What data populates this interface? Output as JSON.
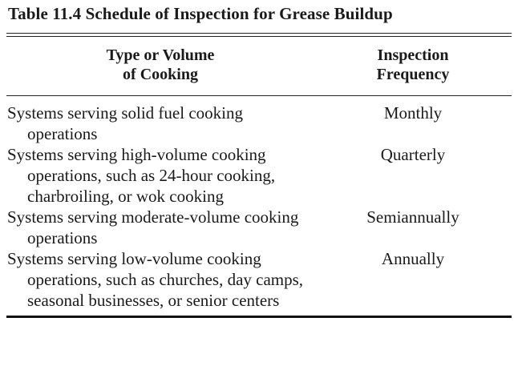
{
  "table": {
    "title": "Table 11.4  Schedule of Inspection for Grease Buildup",
    "headers": {
      "type_line1": "Type or Volume",
      "type_line2": "of Cooking",
      "freq_line1": "Inspection",
      "freq_line2": "Frequency"
    },
    "rows": [
      {
        "type": "Systems serving solid fuel cooking operations",
        "frequency": "Monthly"
      },
      {
        "type": "Systems serving high-volume cooking operations, such as 24-hour cooking, charbroiling, or wok cooking",
        "frequency": "Quarterly"
      },
      {
        "type": "Systems serving moderate-volume cooking operations",
        "frequency": "Semiannually"
      },
      {
        "type": "Systems serving low-volume cooking operations, such as churches, day camps, seasonal businesses, or senior centers",
        "frequency": "Annually"
      }
    ]
  }
}
